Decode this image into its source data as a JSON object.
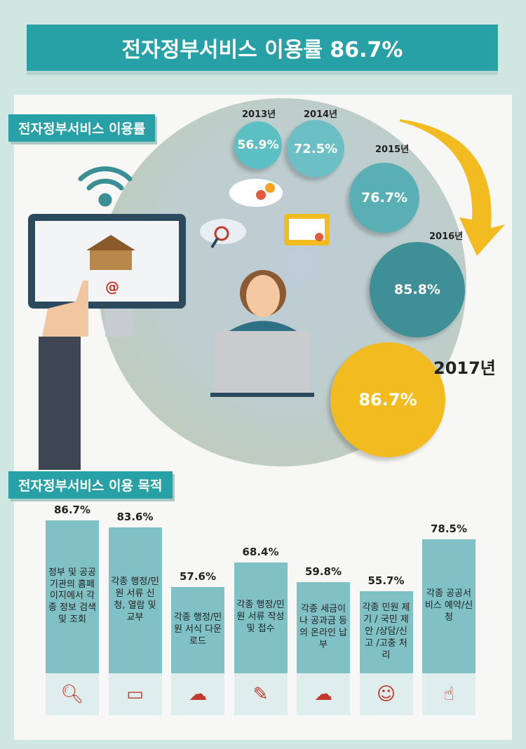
{
  "title": "전자정부서비스 이용률 86.7%",
  "section1": "전자정부서비스 이용률",
  "section2": "전자정부서비스 이용 목적",
  "years": [
    {
      "year": "2013년",
      "value": "56.9%"
    },
    {
      "year": "2014년",
      "value": "72.5%"
    },
    {
      "year": "2015년",
      "value": "76.7%"
    },
    {
      "year": "2016년",
      "value": "85.8%"
    },
    {
      "year": "2017년",
      "value": "86.7%"
    }
  ],
  "colors": {
    "accent": "#27a1a6",
    "bar": "#7fc1c5",
    "highlight": "#f2bb1f"
  },
  "chart_data": [
    {
      "type": "line",
      "categories": [
        "2013년",
        "2014년",
        "2015년",
        "2016년",
        "2017년"
      ],
      "values": [
        56.9,
        72.5,
        76.7,
        85.8,
        86.7
      ],
      "unit": "%"
    },
    {
      "type": "bar",
      "unit": "%",
      "categories": [
        "정부 및 공공기관의 홈페이지에서 각종 정보 검색 및 조회",
        "각종 행정/민원 서류 신청, 열람 및 교부",
        "각종 행정/민원 서식 다운로드",
        "각종 행정/민원 서류 작성 및 접수",
        "각종 세금이나 공과금 등의 온라인 납부",
        "각종 민원 제기 / 국민 제안 /상담/신고 /고충 처리",
        "각종 공공서비스 예약/신청"
      ],
      "values": [
        86.7,
        83.6,
        57.6,
        68.4,
        59.8,
        55.7,
        78.5
      ],
      "labels": [
        "86.7%",
        "83.6%",
        "57.6%",
        "68.4%",
        "59.8%",
        "55.7%",
        "78.5%"
      ],
      "icons": [
        "search-icon",
        "certificate-icon",
        "cloud-download-icon",
        "document-pen-icon",
        "cloud-hand-icon",
        "consultation-icon",
        "touch-icon"
      ]
    }
  ]
}
